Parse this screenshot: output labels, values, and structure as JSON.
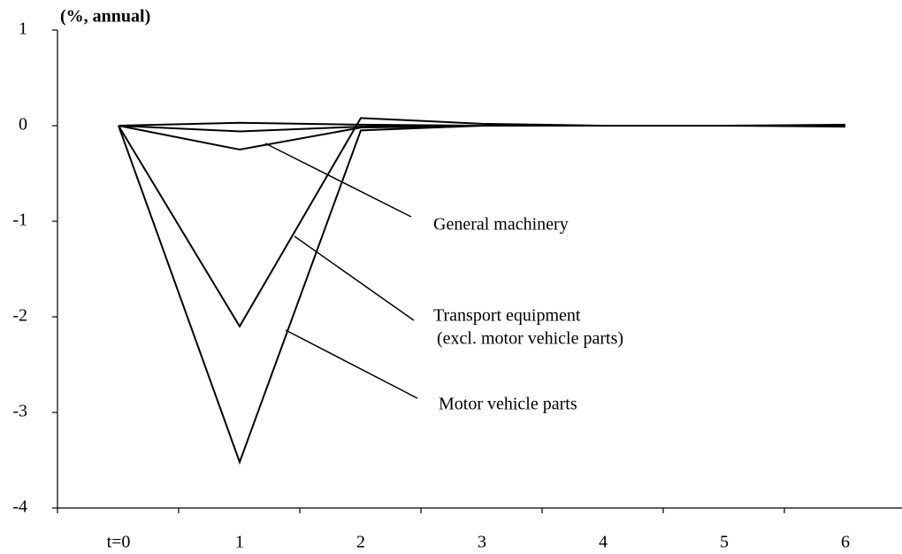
{
  "chart_data": {
    "type": "line",
    "y_unit_label": "(%, annual)",
    "categories": [
      "t=0",
      "1",
      "2",
      "3",
      "4",
      "5",
      "6"
    ],
    "series": [
      {
        "name": "General machinery",
        "color": "#000000",
        "values": [
          0,
          -0.25,
          -0.02,
          0,
          0,
          0,
          0
        ]
      },
      {
        "name": "Transport equipment",
        "color": "#000000",
        "values": [
          0,
          -2.1,
          0.08,
          0.02,
          0,
          0,
          0
        ]
      },
      {
        "name": "Motor vehicle parts",
        "color": "#000000",
        "values": [
          0,
          -3.52,
          -0.05,
          0,
          0,
          0,
          0
        ]
      },
      {
        "color": "#000000",
        "values": [
          0,
          0.03,
          0.01,
          0,
          0,
          0,
          0.01
        ]
      },
      {
        "color": "#000000",
        "values": [
          0,
          -0.06,
          -0.01,
          0,
          0,
          0,
          -0.01
        ]
      }
    ],
    "annotations": [
      "General machinery",
      "Transport equipment",
      "(excl. motor vehicle parts)",
      "Motor vehicle parts"
    ],
    "ylim": [
      -4,
      1
    ],
    "yticks": [
      -4,
      -3,
      -2,
      -1,
      0,
      1
    ],
    "grid": false,
    "legend": false
  }
}
